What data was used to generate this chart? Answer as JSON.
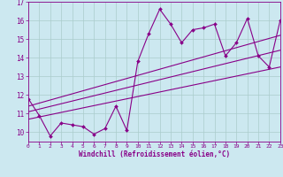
{
  "xlabel": "Windchill (Refroidissement éolien,°C)",
  "bg_color": "#cce8f0",
  "line_color": "#880088",
  "x_data": [
    0,
    1,
    2,
    3,
    4,
    5,
    6,
    7,
    8,
    9,
    10,
    11,
    12,
    13,
    14,
    15,
    16,
    17,
    18,
    19,
    20,
    21,
    22,
    23
  ],
  "y_main": [
    11.8,
    10.9,
    9.8,
    10.5,
    10.4,
    10.3,
    9.9,
    10.2,
    11.4,
    10.1,
    13.8,
    15.3,
    16.6,
    15.8,
    14.8,
    15.5,
    15.6,
    15.8,
    14.1,
    14.8,
    16.1,
    14.1,
    13.5,
    16.0
  ],
  "trend1_x": [
    0,
    23
  ],
  "trend1_y": [
    10.7,
    13.5
  ],
  "trend2_x": [
    0,
    23
  ],
  "trend2_y": [
    11.1,
    14.4
  ],
  "trend3_x": [
    0,
    23
  ],
  "trend3_y": [
    11.4,
    15.2
  ],
  "xlim": [
    0,
    23
  ],
  "ylim": [
    9.5,
    17.0
  ],
  "xticks": [
    0,
    1,
    2,
    3,
    4,
    5,
    6,
    7,
    8,
    9,
    10,
    11,
    12,
    13,
    14,
    15,
    16,
    17,
    18,
    19,
    20,
    21,
    22,
    23
  ],
  "yticks": [
    10,
    11,
    12,
    13,
    14,
    15,
    16,
    17
  ]
}
